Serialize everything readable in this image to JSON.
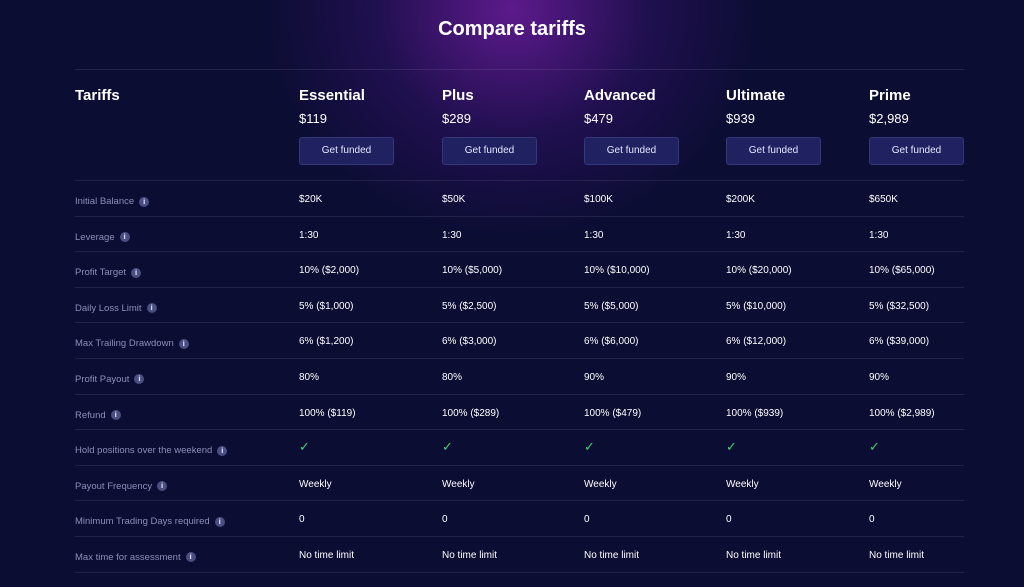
{
  "title": "Compare tariffs",
  "header_label": "Tariffs",
  "cta_label": "Get funded",
  "check_symbol": "✓",
  "info_icon": "i",
  "plans": [
    {
      "name": "Essential",
      "price": "$119"
    },
    {
      "name": "Plus",
      "price": "$289"
    },
    {
      "name": "Advanced",
      "price": "$479"
    },
    {
      "name": "Ultimate",
      "price": "$939"
    },
    {
      "name": "Prime",
      "price": "$2,989"
    }
  ],
  "rows": [
    {
      "label": "Initial Balance",
      "values": [
        "$20K",
        "$50K",
        "$100K",
        "$200K",
        "$650K"
      ]
    },
    {
      "label": "Leverage",
      "values": [
        "1:30",
        "1:30",
        "1:30",
        "1:30",
        "1:30"
      ]
    },
    {
      "label": "Profit Target",
      "values": [
        "10% ($2,000)",
        "10% ($5,000)",
        "10% ($10,000)",
        "10% ($20,000)",
        "10% ($65,000)"
      ]
    },
    {
      "label": "Daily Loss Limit",
      "values": [
        "5% ($1,000)",
        "5% ($2,500)",
        "5% ($5,000)",
        "5% ($10,000)",
        "5% ($32,500)"
      ]
    },
    {
      "label": "Max Trailing Drawdown",
      "values": [
        "6% ($1,200)",
        "6% ($3,000)",
        "6% ($6,000)",
        "6% ($12,000)",
        "6% ($39,000)"
      ]
    },
    {
      "label": "Profit Payout",
      "values": [
        "80%",
        "80%",
        "90%",
        "90%",
        "90%"
      ]
    },
    {
      "label": "Refund",
      "values": [
        "100% ($119)",
        "100% ($289)",
        "100% ($479)",
        "100% ($939)",
        "100% ($2,989)"
      ]
    },
    {
      "label": "Hold positions over the weekend",
      "check": true,
      "values": [
        "✓",
        "✓",
        "✓",
        "✓",
        "✓"
      ]
    },
    {
      "label": "Payout Frequency",
      "values": [
        "Weekly",
        "Weekly",
        "Weekly",
        "Weekly",
        "Weekly"
      ]
    },
    {
      "label": "Minimum Trading Days required",
      "values": [
        "0",
        "0",
        "0",
        "0",
        "0"
      ]
    },
    {
      "label": "Max time for assessment",
      "values": [
        "No time limit",
        "No time limit",
        "No time limit",
        "No time limit",
        "No time limit"
      ]
    }
  ],
  "colors": {
    "background": "#0b0d33",
    "accent_glow": "#7a1eaa",
    "button": "#1f2160",
    "check": "#3fd16b"
  }
}
